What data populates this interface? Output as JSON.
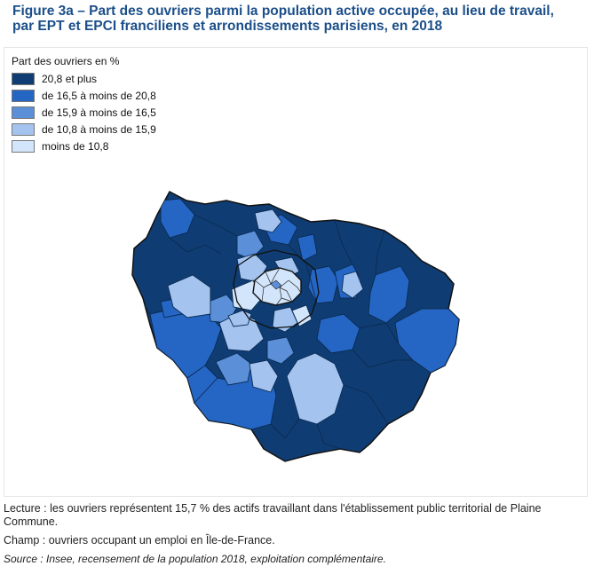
{
  "title_line1": "Figure 3a – Part des ouvriers parmi la population active occupée, au lieu de travail,",
  "title_line2": "par EPT et EPCI franciliens et arrondissements parisiens, en 2018",
  "legend": {
    "title": "Part des ouvriers en %",
    "items": [
      {
        "label": "20,8 et plus",
        "color": "#0f3d73"
      },
      {
        "label": "de 16,5 à moins de 20,8",
        "color": "#2566c4"
      },
      {
        "label": "de 15,9 à moins de 16,5",
        "color": "#5b8fd8"
      },
      {
        "label": "de 10,8 à moins de 15,9",
        "color": "#a4c4ef"
      },
      {
        "label": "moins de 10,8",
        "color": "#d3e5fb"
      }
    ]
  },
  "notes": {
    "lecture": "Lecture : les ouvriers représentent 15,7 % des actifs travaillant dans l'établissement public territorial de Plaine Commune.",
    "champ": "Champ : ouvriers occupant un emploi en Île-de-France.",
    "source": "Source : Insee, recensement de la population 2018, exploitation complémentaire."
  }
}
